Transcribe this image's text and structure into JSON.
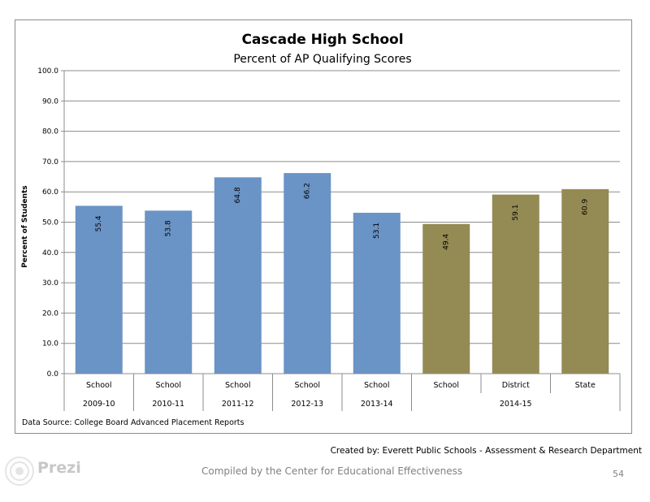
{
  "chart_data": {
    "type": "bar",
    "title": "Cascade High School",
    "subtitle": "Percent of AP Qualifying Scores",
    "ylabel": "Percent of Students",
    "xlabel": "",
    "ylim": [
      0,
      100
    ],
    "yticks": [
      "0.0",
      "10.0",
      "20.0",
      "30.0",
      "40.0",
      "50.0",
      "60.0",
      "70.0",
      "80.0",
      "90.0",
      "100.0"
    ],
    "categories": [
      "School",
      "School",
      "School",
      "School",
      "School",
      "School",
      "District",
      "State"
    ],
    "groups": [
      {
        "label": "2009-10",
        "span": 1
      },
      {
        "label": "2010-11",
        "span": 1
      },
      {
        "label": "2011-12",
        "span": 1
      },
      {
        "label": "2012-13",
        "span": 1
      },
      {
        "label": "2013-14",
        "span": 1
      },
      {
        "label": "2014-15",
        "span": 3
      }
    ],
    "values": [
      55.4,
      53.8,
      64.8,
      66.2,
      53.1,
      49.4,
      59.1,
      60.9
    ],
    "value_labels": [
      "55.4",
      "53.8",
      "64.8",
      "66.2",
      "53.1",
      "49.4",
      "59.1",
      "60.9"
    ],
    "bar_colors": [
      "#6a93c6",
      "#6a93c6",
      "#6a93c6",
      "#6a93c6",
      "#6a93c6",
      "#948a54",
      "#948a54",
      "#948a54"
    ],
    "grid": true,
    "legend": "none",
    "data_source": "Data Source: College Board Advanced Placement Reports"
  },
  "footer": {
    "created_by": "Created by: Everett Public Schools - Assessment & Research Department",
    "compiled_by": "Compiled by the Center for Educational Effectiveness",
    "page_number": "54",
    "logo_text": "Prezi"
  },
  "colors": {
    "gridline": "#8c8c8c",
    "axis": "#8c8c8c"
  }
}
